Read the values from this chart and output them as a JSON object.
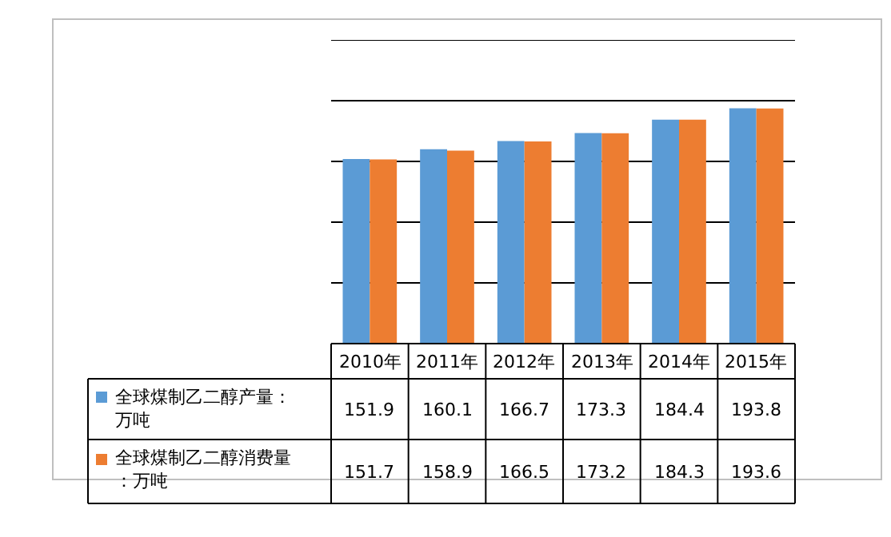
{
  "chart_data": {
    "type": "bar",
    "categories": [
      "2010年",
      "2011年",
      "2012年",
      "2013年",
      "2014年",
      "2015年"
    ],
    "series": [
      {
        "name": "全球煤制乙二醇产量：万吨",
        "color": "#5b9bd5",
        "values": [
          151.9,
          160.1,
          166.7,
          173.3,
          184.4,
          193.8
        ]
      },
      {
        "name": "全球煤制乙二醇消费量：万吨",
        "color": "#ed7d31",
        "values": [
          151.7,
          158.9,
          166.5,
          173.2,
          184.3,
          193.6
        ]
      }
    ],
    "ylim": [
      0,
      250
    ],
    "yticks": [
      {
        "value": 0,
        "label": null
      },
      {
        "value": 50,
        "label": null
      },
      {
        "value": 100,
        "label": null
      },
      {
        "value": 150,
        "label": null
      },
      {
        "value": 200,
        "label": null
      },
      {
        "value": 250,
        "label": null
      }
    ],
    "grid": "y",
    "tick_labels": "x",
    "data_labels": true,
    "legend": "bottom left"
  }
}
